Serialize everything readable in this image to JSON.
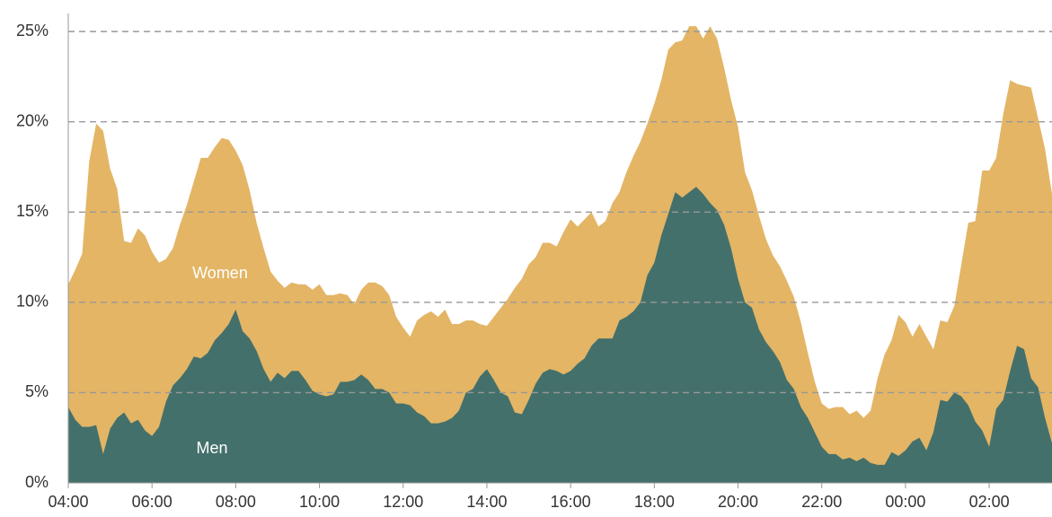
{
  "chart_data": {
    "type": "area",
    "categories": [
      "04:00",
      null,
      null,
      null,
      null,
      null,
      null,
      null,
      null,
      null,
      null,
      null,
      "06:00",
      null,
      null,
      null,
      null,
      null,
      null,
      null,
      null,
      null,
      null,
      null,
      "08:00",
      null,
      null,
      null,
      null,
      null,
      null,
      null,
      null,
      null,
      null,
      null,
      "10:00",
      null,
      null,
      null,
      null,
      null,
      null,
      null,
      null,
      null,
      null,
      null,
      "12:00",
      null,
      null,
      null,
      null,
      null,
      null,
      null,
      null,
      null,
      null,
      null,
      "14:00",
      null,
      null,
      null,
      null,
      null,
      null,
      null,
      null,
      null,
      null,
      null,
      "16:00",
      null,
      null,
      null,
      null,
      null,
      null,
      null,
      null,
      null,
      null,
      null,
      "18:00",
      null,
      null,
      null,
      null,
      null,
      null,
      null,
      null,
      null,
      null,
      null,
      "20:00",
      null,
      null,
      null,
      null,
      null,
      null,
      null,
      null,
      null,
      null,
      null,
      "22:00",
      null,
      null,
      null,
      null,
      null,
      null,
      null,
      null,
      null,
      null,
      null,
      "00:00",
      null,
      null,
      null,
      null,
      null,
      null,
      null,
      null,
      null,
      null,
      null,
      "02:00",
      null,
      null,
      null,
      null,
      null,
      null,
      null,
      null,
      null
    ],
    "series": [
      {
        "name": "Women",
        "color": "#e3b565",
        "values": [
          11,
          11.8,
          12.7,
          17.8,
          19.9,
          19.5,
          17.4,
          16.3,
          13.4,
          13.3,
          14.1,
          13.7,
          12.8,
          12.2,
          12.4,
          13,
          14.3,
          15.4,
          16.7,
          18,
          18,
          18.6,
          19.1,
          19,
          18.4,
          17.6,
          16.2,
          14.4,
          13,
          11.7,
          11.2,
          10.8,
          11.1,
          11,
          11,
          10.7,
          11,
          10.4,
          10.4,
          10.5,
          10.4,
          9.9,
          10.7,
          11.1,
          11.1,
          10.9,
          10.4,
          9.2,
          8.6,
          8.1,
          9,
          9.3,
          9.5,
          9.2,
          9.6,
          8.8,
          8.8,
          9,
          9,
          8.8,
          8.7,
          9.2,
          9.7,
          10.2,
          10.8,
          11.3,
          12.1,
          12.5,
          13.3,
          13.3,
          13.1,
          13.9,
          14.6,
          14.2,
          14.6,
          15,
          14.2,
          14.5,
          15.5,
          16.1,
          17.2,
          18.1,
          18.9,
          19.9,
          21,
          22.3,
          24,
          24.4,
          24.5,
          25.3,
          25.3,
          24.6,
          25.3,
          24.6,
          23,
          21.2,
          19.7,
          17.2,
          16.2,
          14.8,
          13.5,
          12.6,
          12,
          11.2,
          10.3,
          8.9,
          7.2,
          5.6,
          4.4,
          4.1,
          4.2,
          4.2,
          3.8,
          4,
          3.6,
          4,
          5.8,
          7.1,
          7.9,
          9.3,
          8.9,
          8.1,
          8.8,
          8.1,
          7.4,
          9,
          8.9,
          9.8,
          12.1,
          14.4,
          14.5,
          17.3,
          17.3,
          18,
          20.4,
          22.3,
          22.1,
          22,
          21.9,
          20.2,
          18.5,
          16
        ]
      },
      {
        "name": "Men",
        "color": "#44706b",
        "values": [
          4.2,
          3.5,
          3.1,
          3.1,
          3.2,
          1.6,
          3,
          3.6,
          3.9,
          3.3,
          3.5,
          2.9,
          2.6,
          3.1,
          4.5,
          5.4,
          5.8,
          6.3,
          7,
          6.9,
          7.2,
          7.9,
          8.3,
          8.8,
          9.6,
          8.4,
          8,
          7.3,
          6.3,
          5.6,
          6.1,
          5.8,
          6.2,
          6.2,
          5.7,
          5.1,
          4.9,
          4.8,
          4.9,
          5.6,
          5.6,
          5.7,
          6,
          5.7,
          5.2,
          5.2,
          5,
          4.4,
          4.4,
          4.3,
          3.9,
          3.7,
          3.3,
          3.3,
          3.4,
          3.6,
          4,
          5,
          5.2,
          5.9,
          6.3,
          5.7,
          5,
          4.8,
          3.9,
          3.8,
          4.6,
          5.5,
          6.1,
          6.3,
          6.2,
          6,
          6.2,
          6.6,
          6.9,
          7.6,
          8,
          8,
          8,
          9,
          9.2,
          9.5,
          10,
          11.5,
          12.2,
          13.7,
          14.9,
          16.1,
          15.8,
          16.1,
          16.4,
          16,
          15.5,
          15.1,
          14.3,
          13,
          11.3,
          10,
          9.7,
          8.5,
          7.8,
          7.3,
          6.7,
          5.7,
          5.2,
          4.2,
          3.6,
          2.8,
          2,
          1.6,
          1.6,
          1.3,
          1.4,
          1.2,
          1.4,
          1.1,
          1,
          1,
          1.7,
          1.5,
          1.8,
          2.3,
          2.5,
          1.8,
          2.8,
          4.6,
          4.5,
          5,
          4.8,
          4.3,
          3.4,
          2.9,
          2,
          4.1,
          4.6,
          6.2,
          7.6,
          7.4,
          5.8,
          5.3,
          3.6,
          2.2
        ]
      }
    ],
    "ylim": [
      0,
      26
    ],
    "yticks": [
      {
        "value": 0,
        "label": "0%"
      },
      {
        "value": 5,
        "label": "5%"
      },
      {
        "value": 10,
        "label": "10%"
      },
      {
        "value": 15,
        "label": "15%"
      },
      {
        "value": 20,
        "label": "20%"
      },
      {
        "value": 25,
        "label": "25%"
      }
    ],
    "grid": true
  }
}
